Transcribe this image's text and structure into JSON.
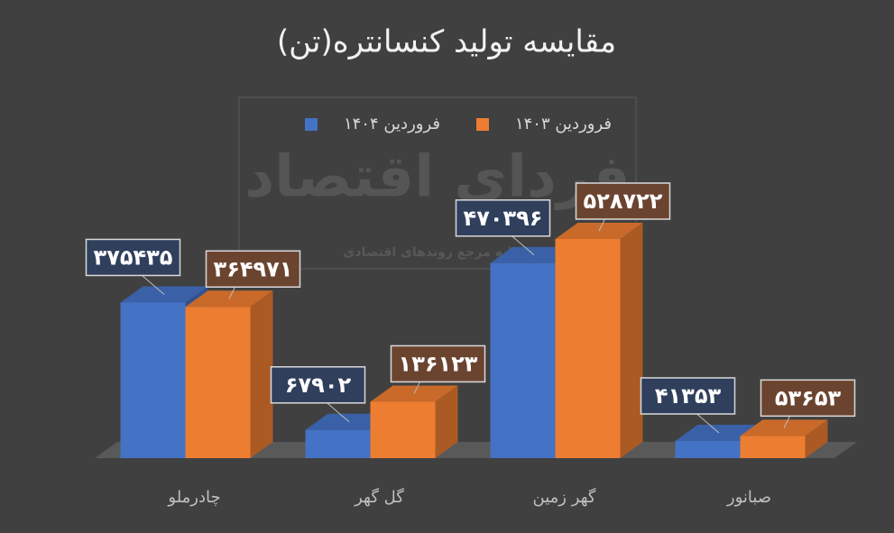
{
  "chart_data": {
    "type": "bar3d",
    "title": "مقایسه تولید کنسانتره(تن)",
    "watermark": {
      "title": "فردای اقتصاد",
      "subtitle": "رسانه مرجع روندهای اقتصادی"
    },
    "categories": [
      "چادرملو",
      "گل گهر",
      "گهر زمین",
      "صبانور"
    ],
    "series": [
      {
        "name": "فروردین ۱۴۰۴",
        "color": "#4472c4",
        "values": [
          375435,
          67902,
          470396,
          41353
        ],
        "value_labels": [
          "۳۷۵۴۳۵",
          "۶۷۹۰۲",
          "۴۷۰۳۹۶",
          "۴۱۳۵۳"
        ]
      },
      {
        "name": "فروردین ۱۴۰۳",
        "color": "#ed7d31",
        "values": [
          364971,
          136123,
          528722,
          53653
        ],
        "value_labels": [
          "۳۶۴۹۷۱",
          "۱۳۶۱۲۳",
          "۵۲۸۷۲۲",
          "۵۳۶۵۳"
        ]
      }
    ],
    "legend": "top"
  }
}
